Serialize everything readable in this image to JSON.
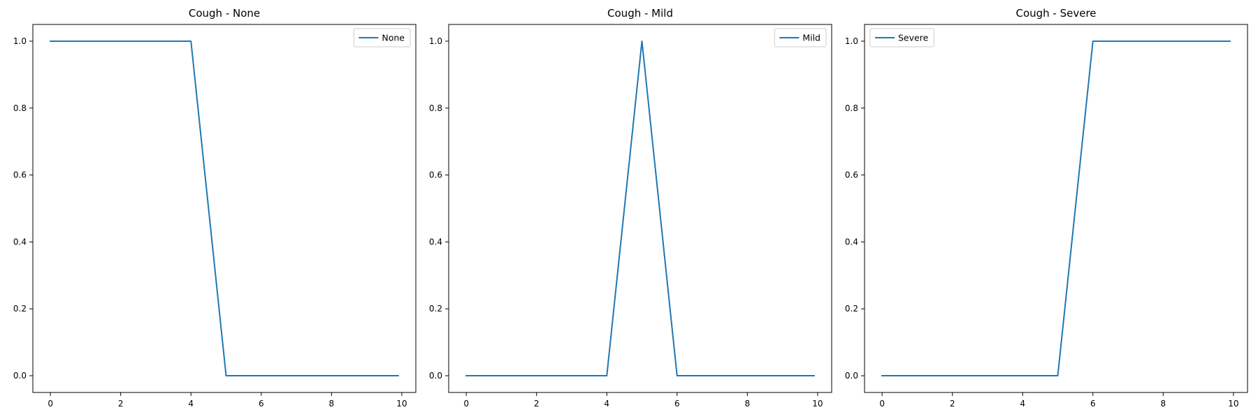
{
  "chart_data": [
    {
      "type": "line",
      "title": "Cough - None",
      "xlabel": "",
      "ylabel": "",
      "xlim": [
        -0.5,
        10.4
      ],
      "ylim": [
        -0.05,
        1.05
      ],
      "xticks": [
        0,
        2,
        4,
        6,
        8,
        10
      ],
      "xtick_labels": [
        "0",
        "2",
        "4",
        "6",
        "8",
        "10"
      ],
      "yticks": [
        0.0,
        0.2,
        0.4,
        0.6,
        0.8,
        1.0
      ],
      "ytick_labels": [
        "0.0",
        "0.2",
        "0.4",
        "0.6",
        "0.8",
        "1.0"
      ],
      "grid": false,
      "legend_position": "top-right",
      "series": [
        {
          "name": "None",
          "color": "#1f77b4",
          "x": [
            0,
            1,
            2,
            3,
            4,
            5,
            6,
            7,
            8,
            9,
            9.9
          ],
          "y": [
            1,
            1,
            1,
            1,
            1,
            0,
            0,
            0,
            0,
            0,
            0
          ]
        }
      ]
    },
    {
      "type": "line",
      "title": "Cough - Mild",
      "xlabel": "",
      "ylabel": "",
      "xlim": [
        -0.5,
        10.4
      ],
      "ylim": [
        -0.05,
        1.05
      ],
      "xticks": [
        0,
        2,
        4,
        6,
        8,
        10
      ],
      "xtick_labels": [
        "0",
        "2",
        "4",
        "6",
        "8",
        "10"
      ],
      "yticks": [
        0.0,
        0.2,
        0.4,
        0.6,
        0.8,
        1.0
      ],
      "ytick_labels": [
        "0.0",
        "0.2",
        "0.4",
        "0.6",
        "0.8",
        "1.0"
      ],
      "grid": false,
      "legend_position": "top-right",
      "series": [
        {
          "name": "Mild",
          "color": "#1f77b4",
          "x": [
            0,
            1,
            2,
            3,
            4,
            5,
            6,
            7,
            8,
            9,
            9.9
          ],
          "y": [
            0,
            0,
            0,
            0,
            0,
            1,
            0,
            0,
            0,
            0,
            0
          ]
        }
      ]
    },
    {
      "type": "line",
      "title": "Cough - Severe",
      "xlabel": "",
      "ylabel": "",
      "xlim": [
        -0.5,
        10.4
      ],
      "ylim": [
        -0.05,
        1.05
      ],
      "xticks": [
        0,
        2,
        4,
        6,
        8,
        10
      ],
      "xtick_labels": [
        "0",
        "2",
        "4",
        "6",
        "8",
        "10"
      ],
      "yticks": [
        0.0,
        0.2,
        0.4,
        0.6,
        0.8,
        1.0
      ],
      "ytick_labels": [
        "0.0",
        "0.2",
        "0.4",
        "0.6",
        "0.8",
        "1.0"
      ],
      "grid": false,
      "legend_position": "top-left",
      "series": [
        {
          "name": "Severe",
          "color": "#1f77b4",
          "x": [
            0,
            1,
            2,
            3,
            4,
            5,
            6,
            7,
            8,
            9,
            9.9
          ],
          "y": [
            0,
            0,
            0,
            0,
            0,
            0,
            1,
            1,
            1,
            1,
            1
          ]
        }
      ]
    }
  ]
}
